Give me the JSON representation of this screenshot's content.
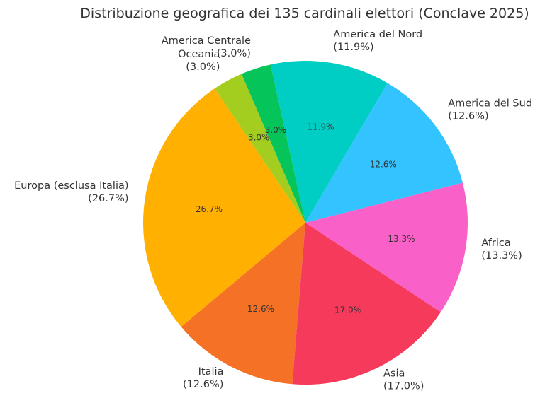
{
  "chart_data": {
    "type": "pie",
    "title": "Distribuzione geografica dei 135 cardinali elettori (Conclave 2025)",
    "slices": [
      {
        "label": "Europa (esclusa Italia)",
        "value": 26.7,
        "pct_label": "26.7%",
        "outer_pct": "(26.7%)",
        "color": "#FFB000"
      },
      {
        "label": "Italia",
        "value": 12.6,
        "pct_label": "12.6%",
        "outer_pct": "(12.6%)",
        "color": "#F47126"
      },
      {
        "label": "Asia",
        "value": 17.0,
        "pct_label": "17.0%",
        "outer_pct": "(17.0%)",
        "color": "#F53A5C"
      },
      {
        "label": "Africa",
        "value": 13.3,
        "pct_label": "13.3%",
        "outer_pct": "(13.3%)",
        "color": "#F961C8"
      },
      {
        "label": "America del Sud",
        "value": 12.6,
        "pct_label": "12.6%",
        "outer_pct": "(12.6%)",
        "color": "#33C3FF"
      },
      {
        "label": "America del Nord",
        "value": 11.9,
        "pct_label": "11.9%",
        "outer_pct": "(11.9%)",
        "color": "#00CEC4"
      },
      {
        "label": "America Centrale",
        "value": 3.0,
        "pct_label": "3.0%",
        "outer_pct": "(3.0%)",
        "color": "#05C45A"
      },
      {
        "label": "Oceania",
        "value": 3.0,
        "pct_label": "3.0%",
        "outer_pct": "(3.0%)",
        "color": "#A3CE1F"
      }
    ],
    "legend": "none"
  }
}
